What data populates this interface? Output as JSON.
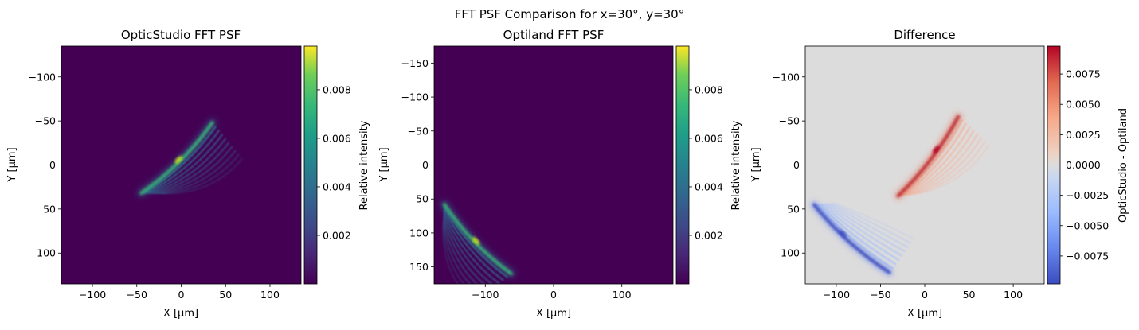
{
  "figure": {
    "suptitle": "FFT PSF Comparison for x=30°, y=30°"
  },
  "chart_data": [
    {
      "type": "heatmap",
      "title": "OpticStudio FFT PSF",
      "xlabel": "X [µm]",
      "ylabel": "Y [µm]",
      "xlim": [
        -135,
        135
      ],
      "ylim": [
        135,
        -135
      ],
      "xticks": [
        -100,
        -50,
        0,
        50,
        100
      ],
      "yticks": [
        -100,
        -50,
        0,
        50,
        100
      ],
      "xtick_labels": [
        "−100",
        "−50",
        "0",
        "50",
        "100"
      ],
      "ytick_labels": [
        "−100",
        "−50",
        "0",
        "50",
        "100"
      ],
      "colormap": "viridis",
      "background_color": "#440154",
      "colorbar": {
        "label": "Relative intensity",
        "range": [
          0.0,
          0.0098
        ],
        "ticks": [
          0.002,
          0.004,
          0.006,
          0.008
        ],
        "tick_labels": [
          "0.002",
          "0.004",
          "0.006",
          "0.008"
        ]
      },
      "feature": {
        "caustic_start": [
          -45,
          32
        ],
        "caustic_end": [
          35,
          -48
        ],
        "peak_intensity": 0.0098,
        "fringe_count": 9
      }
    },
    {
      "type": "heatmap",
      "title": "Optiland FFT PSF",
      "xlabel": "X [µm]",
      "ylabel": "Y [µm]",
      "xlim": [
        -175,
        175
      ],
      "ylim": [
        175,
        -175
      ],
      "xticks": [
        -100,
        0,
        100
      ],
      "yticks": [
        -150,
        -100,
        -50,
        0,
        50,
        100,
        150
      ],
      "xtick_labels": [
        "−100",
        "0",
        "100"
      ],
      "ytick_labels": [
        "−150",
        "−100",
        "−50",
        "0",
        "50",
        "100",
        "150"
      ],
      "colormap": "viridis",
      "background_color": "#440154",
      "colorbar": {
        "label": "Relative intensity",
        "range": [
          0.0,
          0.0098
        ],
        "ticks": [
          0.002,
          0.004,
          0.006,
          0.008
        ],
        "tick_labels": [
          "0.002",
          "0.004",
          "0.006",
          "0.008"
        ]
      },
      "feature": {
        "caustic_start": [
          -160,
          58
        ],
        "caustic_end": [
          -62,
          160
        ],
        "peak_intensity": 0.0098,
        "fringe_count": 9
      }
    },
    {
      "type": "heatmap",
      "title": "Difference",
      "xlabel": "X [µm]",
      "ylabel": "Y [µm]",
      "xlim": [
        -135,
        135
      ],
      "ylim": [
        135,
        -135
      ],
      "xticks": [
        -100,
        -50,
        0,
        50,
        100
      ],
      "yticks": [
        -100,
        -50,
        0,
        50,
        100
      ],
      "xtick_labels": [
        "−100",
        "−50",
        "0",
        "50",
        "100"
      ],
      "ytick_labels": [
        "−100",
        "−50",
        "0",
        "50",
        "100"
      ],
      "colormap": "coolwarm",
      "background_color": "#dddcdc",
      "colorbar": {
        "label": "OpticStudio - Optiland",
        "range": [
          -0.0098,
          0.0098
        ],
        "ticks": [
          -0.0075,
          -0.005,
          -0.0025,
          0.0,
          0.0025,
          0.005,
          0.0075
        ],
        "tick_labels": [
          "−0.0075",
          "−0.0050",
          "−0.0025",
          "0.0000",
          "0.0025",
          "0.0050",
          "0.0075"
        ]
      },
      "feature": {
        "positive_caustic_start": [
          -30,
          35
        ],
        "positive_caustic_end": [
          38,
          -55
        ],
        "negative_caustic_start": [
          -125,
          45
        ],
        "negative_caustic_end": [
          -40,
          122
        ],
        "max_positive": 0.0098,
        "max_negative": -0.0098
      }
    }
  ]
}
